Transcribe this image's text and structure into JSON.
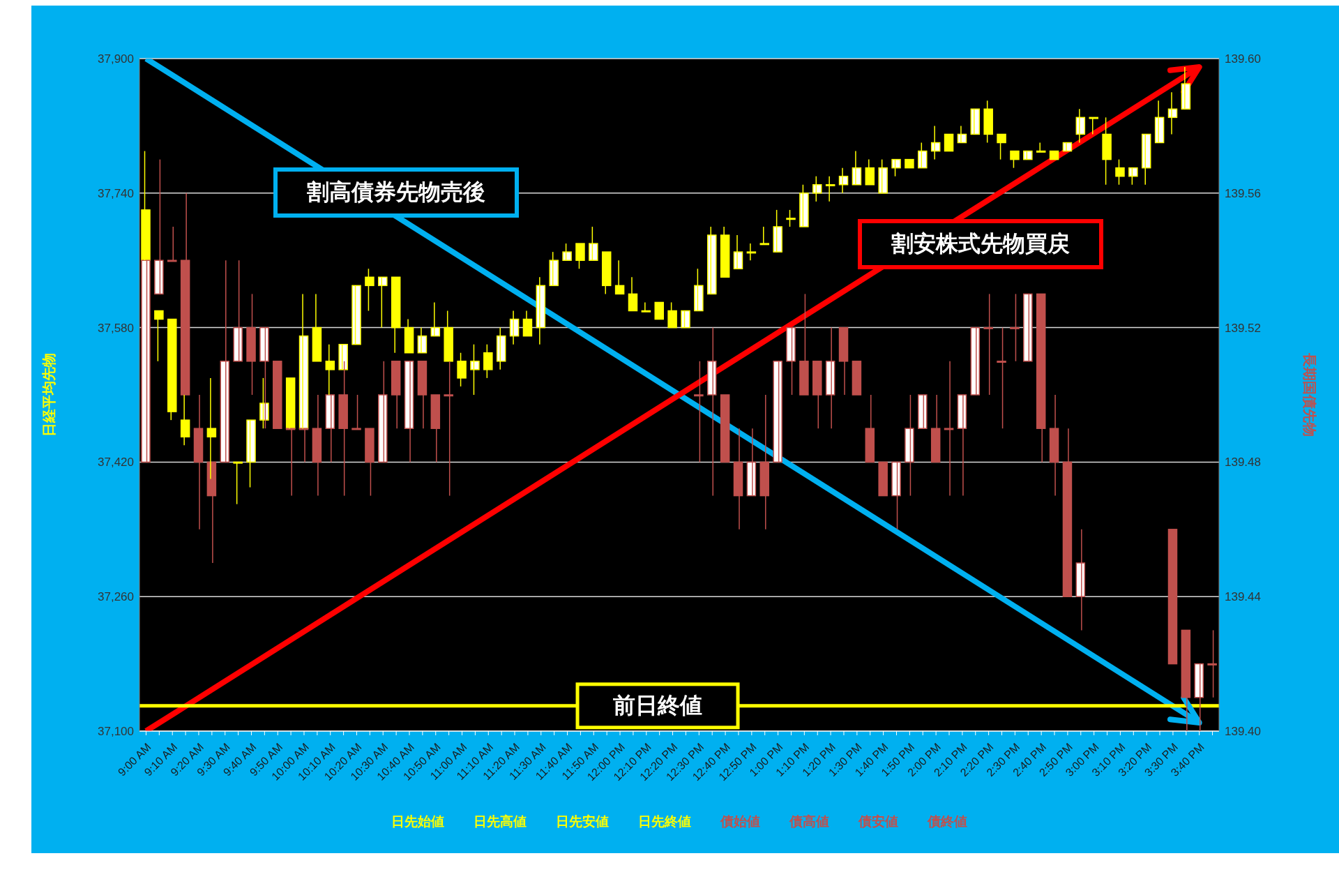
{
  "chart_data": {
    "type": "candlestick",
    "categories": [
      "9:00 AM",
      null,
      "9:10 AM",
      null,
      "9:20 AM",
      null,
      "9:30 AM",
      null,
      "9:40 AM",
      null,
      "9:50 AM",
      null,
      "10:00 AM",
      null,
      "10:10 AM",
      null,
      "10:20 AM",
      null,
      "10:30 AM",
      null,
      "10:40 AM",
      null,
      "10:50 AM",
      null,
      "11:00 AM",
      null,
      "11:10 AM",
      null,
      "11:20 AM",
      null,
      "11:30 AM",
      null,
      "11:40 AM",
      null,
      "11:50 AM",
      null,
      "12:00 PM",
      null,
      "12:10 PM",
      null,
      "12:20 PM",
      null,
      "12:30 PM",
      null,
      "12:40 PM",
      null,
      "12:50 PM",
      null,
      "1:00 PM",
      null,
      "1:10 PM",
      null,
      "1:20 PM",
      null,
      "1:30 PM",
      null,
      "1:40 PM",
      null,
      "1:50 PM",
      null,
      "2:00 PM",
      null,
      "2:10 PM",
      null,
      "2:20 PM",
      null,
      "2:30 PM",
      null,
      "2:40 PM",
      null,
      "2:50 PM",
      null,
      "3:00 PM",
      null,
      "3:10 PM",
      null,
      "3:20 PM",
      null,
      "3:30 PM",
      null,
      "3:40 PM",
      null
    ],
    "series": [
      {
        "color": "#ffff00",
        "ohlc": [
          [
            37720,
            37790,
            37660,
            37660
          ],
          [
            37600,
            37600,
            37540,
            37590
          ],
          [
            37590,
            37590,
            37470,
            37480
          ],
          [
            37470,
            37500,
            37440,
            37450
          ],
          null,
          [
            37460,
            37520,
            37400,
            37450
          ],
          null,
          [
            37420,
            37420,
            37370,
            37420
          ],
          [
            37420,
            37470,
            37390,
            37470
          ],
          [
            37470,
            37520,
            37460,
            37490
          ],
          null,
          [
            37520,
            37520,
            37460,
            37460
          ],
          [
            37460,
            37620,
            37460,
            37570
          ],
          [
            37580,
            37620,
            37540,
            37540
          ],
          [
            37540,
            37560,
            37500,
            37530
          ],
          [
            37530,
            37560,
            37530,
            37560
          ],
          [
            37560,
            37630,
            37560,
            37630
          ],
          [
            37640,
            37650,
            37600,
            37630
          ],
          [
            37630,
            37640,
            37580,
            37640
          ],
          [
            37640,
            37640,
            37550,
            37580
          ],
          [
            37580,
            37590,
            37550,
            37550
          ],
          [
            37550,
            37580,
            37550,
            37570
          ],
          [
            37570,
            37610,
            37570,
            37580
          ],
          [
            37580,
            37600,
            37540,
            37540
          ],
          [
            37540,
            37550,
            37510,
            37520
          ],
          [
            37530,
            37560,
            37500,
            37540
          ],
          [
            37550,
            37560,
            37520,
            37530
          ],
          [
            37540,
            37580,
            37530,
            37570
          ],
          [
            37570,
            37600,
            37560,
            37590
          ],
          [
            37590,
            37600,
            37570,
            37570
          ],
          [
            37580,
            37640,
            37560,
            37630
          ],
          [
            37630,
            37670,
            37630,
            37660
          ],
          [
            37660,
            37680,
            37660,
            37670
          ],
          [
            37680,
            37680,
            37650,
            37660
          ],
          [
            37660,
            37700,
            37660,
            37680
          ],
          [
            37670,
            37670,
            37620,
            37630
          ],
          [
            37630,
            37660,
            37620,
            37620
          ],
          [
            37620,
            37640,
            37600,
            37600
          ],
          [
            37600,
            37610,
            37600,
            37600
          ],
          [
            37610,
            37610,
            37590,
            37590
          ],
          [
            37600,
            37610,
            37580,
            37580
          ],
          [
            37580,
            37600,
            37580,
            37600
          ],
          [
            37600,
            37650,
            37600,
            37630
          ],
          [
            37620,
            37700,
            37620,
            37690
          ],
          [
            37690,
            37700,
            37640,
            37640
          ],
          [
            37650,
            37690,
            37650,
            37670
          ],
          [
            37670,
            37680,
            37660,
            37670
          ],
          [
            37680,
            37700,
            37680,
            37680
          ],
          [
            37670,
            37720,
            37670,
            37700
          ],
          [
            37710,
            37720,
            37700,
            37710
          ],
          [
            37700,
            37750,
            37700,
            37740
          ],
          [
            37740,
            37760,
            37730,
            37750
          ],
          [
            37750,
            37760,
            37730,
            37750
          ],
          [
            37750,
            37770,
            37740,
            37760
          ],
          [
            37750,
            37790,
            37750,
            37770
          ],
          [
            37770,
            37780,
            37750,
            37750
          ],
          [
            37740,
            37780,
            37740,
            37770
          ],
          [
            37770,
            37780,
            37760,
            37780
          ],
          [
            37780,
            37780,
            37770,
            37770
          ],
          [
            37770,
            37800,
            37770,
            37790
          ],
          [
            37790,
            37820,
            37780,
            37800
          ],
          [
            37810,
            37810,
            37790,
            37790
          ],
          [
            37800,
            37820,
            37800,
            37810
          ],
          [
            37810,
            37840,
            37810,
            37840
          ],
          [
            37840,
            37850,
            37800,
            37810
          ],
          [
            37810,
            37810,
            37780,
            37800
          ],
          [
            37790,
            37790,
            37770,
            37780
          ],
          [
            37780,
            37790,
            37780,
            37790
          ],
          [
            37790,
            37800,
            37790,
            37790
          ],
          [
            37790,
            37790,
            37780,
            37780
          ],
          [
            37790,
            37800,
            37790,
            37800
          ],
          [
            37810,
            37840,
            37800,
            37830
          ],
          [
            37830,
            37830,
            37810,
            37830
          ],
          [
            37810,
            37830,
            37750,
            37780
          ],
          [
            37770,
            37780,
            37750,
            37760
          ],
          [
            37760,
            37770,
            37750,
            37770
          ],
          [
            37770,
            37810,
            37750,
            37810
          ],
          [
            37800,
            37850,
            37800,
            37830
          ],
          [
            37830,
            37860,
            37810,
            37840
          ],
          [
            37840,
            37890,
            37840,
            37870
          ],
          null,
          null
        ]
      },
      {
        "color": "#c0504d",
        "axis": "y2",
        "ohlc": [
          [
            139.48,
            139.54,
            139.48,
            139.54
          ],
          [
            139.53,
            139.57,
            139.53,
            139.54
          ],
          [
            139.54,
            139.55,
            139.54,
            139.54
          ],
          [
            139.54,
            139.56,
            139.5,
            139.5
          ],
          [
            139.49,
            139.5,
            139.46,
            139.48
          ],
          [
            139.48,
            139.48,
            139.45,
            139.47
          ],
          [
            139.48,
            139.54,
            139.48,
            139.51
          ],
          [
            139.51,
            139.54,
            139.51,
            139.52
          ],
          [
            139.52,
            139.53,
            139.5,
            139.51
          ],
          [
            139.51,
            139.52,
            139.49,
            139.52
          ],
          [
            139.51,
            139.51,
            139.49,
            139.49
          ],
          [
            139.49,
            139.49,
            139.47,
            139.49
          ],
          [
            139.49,
            139.49,
            139.48,
            139.49
          ],
          [
            139.49,
            139.5,
            139.47,
            139.48
          ],
          [
            139.49,
            139.5,
            139.48,
            139.5
          ],
          [
            139.5,
            139.51,
            139.47,
            139.49
          ],
          [
            139.49,
            139.5,
            139.49,
            139.49
          ],
          [
            139.49,
            139.49,
            139.47,
            139.48
          ],
          [
            139.48,
            139.51,
            139.48,
            139.5
          ],
          [
            139.51,
            139.51,
            139.49,
            139.5
          ],
          [
            139.49,
            139.51,
            139.48,
            139.51
          ],
          [
            139.51,
            139.51,
            139.49,
            139.5
          ],
          [
            139.5,
            139.5,
            139.48,
            139.49
          ],
          [
            139.5,
            139.51,
            139.47,
            139.5
          ],
          null,
          null,
          null,
          null,
          null,
          null,
          null,
          null,
          null,
          null,
          null,
          null,
          null,
          null,
          null,
          null,
          null,
          null,
          [
            139.5,
            139.51,
            139.48,
            139.5
          ],
          [
            139.5,
            139.52,
            139.47,
            139.51
          ],
          [
            139.5,
            139.5,
            139.48,
            139.48
          ],
          [
            139.48,
            139.49,
            139.46,
            139.47
          ],
          [
            139.47,
            139.49,
            139.47,
            139.48
          ],
          [
            139.48,
            139.5,
            139.46,
            139.47
          ],
          [
            139.48,
            139.51,
            139.48,
            139.51
          ],
          [
            139.51,
            139.52,
            139.5,
            139.52
          ],
          [
            139.51,
            139.53,
            139.5,
            139.5
          ],
          [
            139.51,
            139.51,
            139.49,
            139.5
          ],
          [
            139.5,
            139.52,
            139.49,
            139.51
          ],
          [
            139.52,
            139.52,
            139.5,
            139.51
          ],
          [
            139.51,
            139.51,
            139.5,
            139.5
          ],
          [
            139.49,
            139.5,
            139.48,
            139.48
          ],
          [
            139.48,
            139.48,
            139.47,
            139.47
          ],
          [
            139.47,
            139.48,
            139.46,
            139.48
          ],
          [
            139.48,
            139.5,
            139.47,
            139.49
          ],
          [
            139.49,
            139.5,
            139.49,
            139.5
          ],
          [
            139.49,
            139.5,
            139.48,
            139.48
          ],
          [
            139.49,
            139.51,
            139.47,
            139.49
          ],
          [
            139.49,
            139.5,
            139.47,
            139.5
          ],
          [
            139.5,
            139.52,
            139.5,
            139.52
          ],
          [
            139.52,
            139.53,
            139.5,
            139.52
          ],
          [
            139.51,
            139.52,
            139.49,
            139.51
          ],
          [
            139.52,
            139.53,
            139.51,
            139.52
          ],
          [
            139.51,
            139.53,
            139.51,
            139.53
          ],
          [
            139.53,
            139.53,
            139.48,
            139.49
          ],
          [
            139.49,
            139.5,
            139.47,
            139.48
          ],
          [
            139.48,
            139.49,
            139.44,
            139.44
          ],
          [
            139.44,
            139.46,
            139.43,
            139.45
          ],
          null,
          null,
          null,
          null,
          null,
          null,
          [
            139.46,
            139.46,
            139.42,
            139.42
          ],
          [
            139.43,
            139.43,
            139.4,
            139.41
          ],
          [
            139.41,
            139.42,
            139.4,
            139.42
          ],
          [
            139.42,
            139.43,
            139.41,
            139.42
          ]
        ]
      },
      {
        "type": "line",
        "color": "#00b0f0",
        "marker": "none",
        "x": [
          "9:00 AM",
          "3:40 PM"
        ],
        "values": [
          37900,
          37110
        ]
      },
      {
        "type": "line",
        "color": "#ff0000",
        "marker": "none",
        "x": [
          "9:00 AM",
          "3:40 PM"
        ],
        "values": [
          37100,
          37890
        ]
      }
    ],
    "ylabel": "日経平均先物",
    "y2label": "長期国債先物",
    "ylim": [
      37100,
      37900
    ],
    "yticks": [
      {
        "value": 37100,
        "label": "37,100"
      },
      {
        "value": 37260,
        "label": "37,260"
      },
      {
        "value": 37420,
        "label": "37,420"
      },
      {
        "value": 37580,
        "label": "37,580"
      },
      {
        "value": 37740,
        "label": "37,740"
      },
      {
        "value": 37900,
        "label": "37,900"
      }
    ],
    "y2lim": [
      139.4,
      139.6
    ],
    "y2ticks": [
      {
        "value": 139.4,
        "label": "139.40"
      },
      {
        "value": 139.44,
        "label": "139.44"
      },
      {
        "value": 139.48,
        "label": "139.48"
      },
      {
        "value": 139.52,
        "label": "139.52"
      },
      {
        "value": 139.56,
        "label": "139.56"
      },
      {
        "value": 139.6,
        "label": "139.60"
      }
    ],
    "ref_lines": [
      {
        "axis": "y",
        "value": 37130,
        "label": "前日終値",
        "color": "#ffff00"
      }
    ],
    "annotations": [
      "割高債券先物売後",
      "割安株式先物買戻",
      "日先始値",
      "日先高値",
      "日先安値",
      "日先終値",
      "債始値",
      "債高値",
      "債安値",
      "債終値"
    ],
    "grid": "y",
    "legend": "bottom"
  }
}
